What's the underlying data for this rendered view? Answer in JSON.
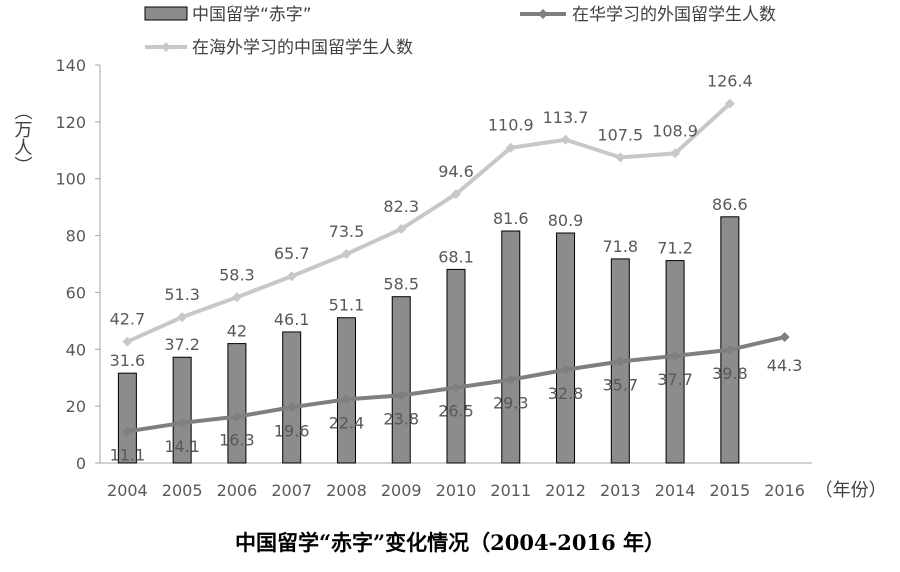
{
  "chart_data": {
    "type": "bar",
    "title": "中国留学“赤字”变化情况（2004-2016 年）",
    "y_unit_label": "（万人）",
    "x_unit_label": "（年份）",
    "ylim": [
      0,
      140
    ],
    "yticks": [
      0,
      20,
      40,
      60,
      80,
      100,
      120,
      140
    ],
    "categories": [
      "2004",
      "2005",
      "2006",
      "2007",
      "2008",
      "2009",
      "2010",
      "2011",
      "2012",
      "2013",
      "2014",
      "2015",
      "2016"
    ],
    "series": [
      {
        "name": "中国留学“赤字”",
        "type": "bar",
        "color": "#8c8c8c",
        "values": [
          31.6,
          37.2,
          42,
          46.1,
          51.1,
          58.5,
          68.1,
          81.6,
          80.9,
          71.8,
          71.2,
          86.6,
          null
        ],
        "labels": [
          "31.6",
          "37.2",
          "42",
          "46.1",
          "51.1",
          "58.5",
          "68.1",
          "81.6",
          "80.9",
          "71.8",
          "71.2",
          "86.6",
          ""
        ]
      },
      {
        "name": "在华学习的外国留学生人数",
        "type": "line",
        "color": "#7f7f7f",
        "values": [
          11.1,
          14.1,
          16.3,
          19.6,
          22.4,
          23.8,
          26.5,
          29.3,
          32.8,
          35.7,
          37.7,
          39.8,
          44.3
        ],
        "labels": [
          "11.1",
          "14.1",
          "16.3",
          "19.6",
          "22.4",
          "23.8",
          "26.5",
          "29.3",
          "32.8",
          "35.7",
          "37.7",
          "39.8",
          "44.3"
        ]
      },
      {
        "name": "在海外学习的中国留学生人数",
        "type": "line",
        "color": "#c8c8c8",
        "values": [
          42.7,
          51.3,
          58.3,
          65.7,
          73.5,
          82.3,
          94.6,
          110.9,
          113.7,
          107.5,
          108.9,
          126.4,
          null
        ],
        "labels": [
          "42.7",
          "51.3",
          "58.3",
          "65.7",
          "73.5",
          "82.3",
          "94.6",
          "110.9",
          "113.7",
          "107.5",
          "108.9",
          "126.4",
          ""
        ]
      }
    ],
    "legend": "top",
    "grid": false
  }
}
